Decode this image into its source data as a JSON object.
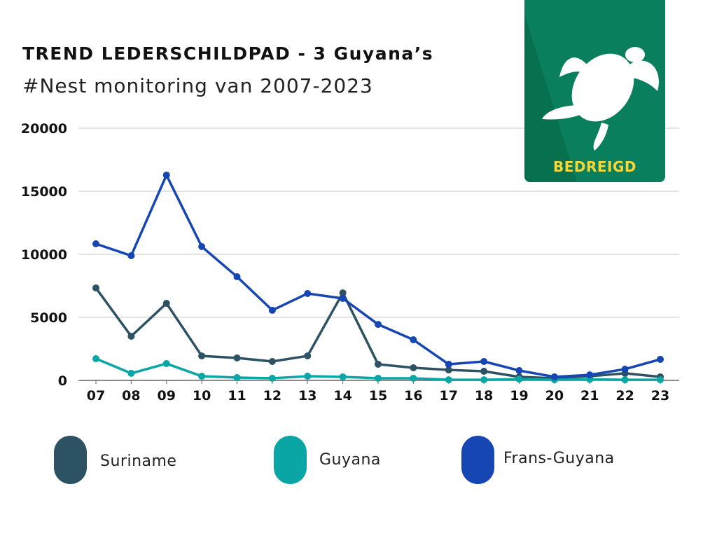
{
  "header": {
    "title": "TREND LEDERSCHILDPAD - 3 Guyana’s",
    "subtitle": "#Nest monitoring van 2007-2023"
  },
  "badge": {
    "label": "BEDREIGD",
    "icon": "turtle-icon",
    "color": "#0a7f5e",
    "label_color": "#f5d73a"
  },
  "chart_data": {
    "type": "line",
    "title": "TREND LEDERSCHILDPAD - 3 Guyana’s",
    "subtitle": "#Nest monitoring van 2007-2023",
    "xlabel": "",
    "ylabel": "",
    "categories": [
      "07",
      "08",
      "09",
      "10",
      "11",
      "12",
      "13",
      "14",
      "15",
      "16",
      "17",
      "18",
      "19",
      "20",
      "21",
      "22",
      "23"
    ],
    "ylim": [
      0,
      20000
    ],
    "yticks": [
      0,
      5000,
      10000,
      15000,
      20000
    ],
    "grid": true,
    "legend_position": "bottom",
    "series": [
      {
        "name": "Suriname",
        "color": "#2d5264",
        "values": [
          7330,
          3500,
          6110,
          1940,
          1780,
          1500,
          1940,
          6940,
          1280,
          1000,
          830,
          720,
          280,
          170,
          330,
          560,
          280
        ]
      },
      {
        "name": "Guyana",
        "color": "#0aa6a6",
        "values": [
          1720,
          560,
          1330,
          330,
          220,
          170,
          330,
          280,
          170,
          170,
          50,
          50,
          100,
          50,
          80,
          50,
          50
        ]
      },
      {
        "name": "Frans-Guyana",
        "color": "#1546b3",
        "values": [
          10830,
          9890,
          16280,
          10610,
          8220,
          5560,
          6890,
          6500,
          4440,
          3220,
          1280,
          1500,
          780,
          280,
          440,
          890,
          1670
        ]
      }
    ]
  }
}
